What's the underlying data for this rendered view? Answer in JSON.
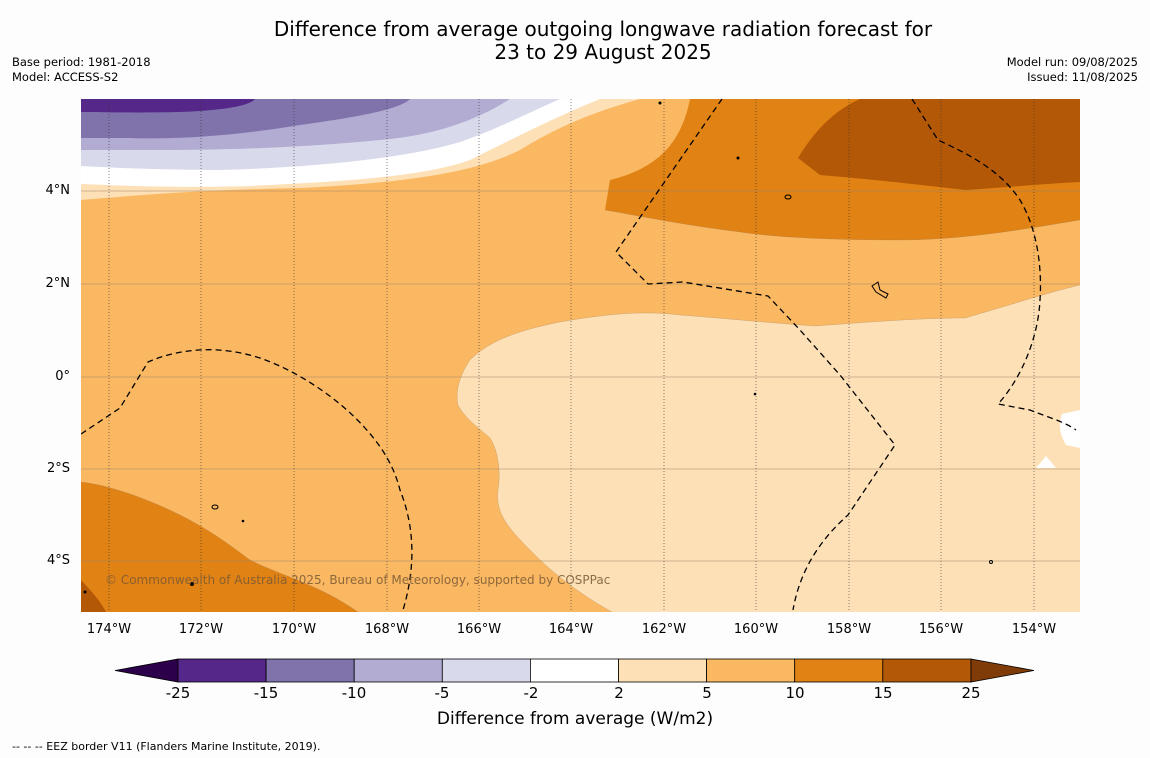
{
  "title": {
    "line1": "Difference from average outgoing longwave radiation forecast for",
    "line2": "23 to 29 August 2025"
  },
  "meta_left": {
    "base_period": "Base period: 1981-2018",
    "model": "Model: ACCESS-S2"
  },
  "meta_right": {
    "model_run": "Model run: 09/08/2025",
    "issued": "Issued: 11/08/2025"
  },
  "map": {
    "lat_labels": [
      "4°N",
      "2°N",
      "0°",
      "2°S",
      "4°S"
    ],
    "lon_labels": [
      "174°W",
      "172°W",
      "170°W",
      "168°W",
      "166°W",
      "164°W",
      "162°W",
      "160°W",
      "158°W",
      "156°W",
      "154°W"
    ],
    "copyright": "© Commonwealth of Australia 2025, Bureau of Meteorology, supported by COSPPac"
  },
  "colorbar": {
    "ticks": [
      "-25",
      "-15",
      "-10",
      "-5",
      "-2",
      "2",
      "5",
      "10",
      "15",
      "25"
    ],
    "colors": [
      "#542788",
      "#8073ac",
      "#b2abd2",
      "#d8daeb",
      "#ffffff",
      "#fde0b6",
      "#fbb862",
      "#e08214",
      "#b35806"
    ],
    "extend_low_color": "#2d004b",
    "extend_high_color": "#7f3b08",
    "label": "Difference from average (W/m2)"
  },
  "footnote": "--  --  -- EEZ border V11 (Flanders Marine Institute, 2019)."
}
